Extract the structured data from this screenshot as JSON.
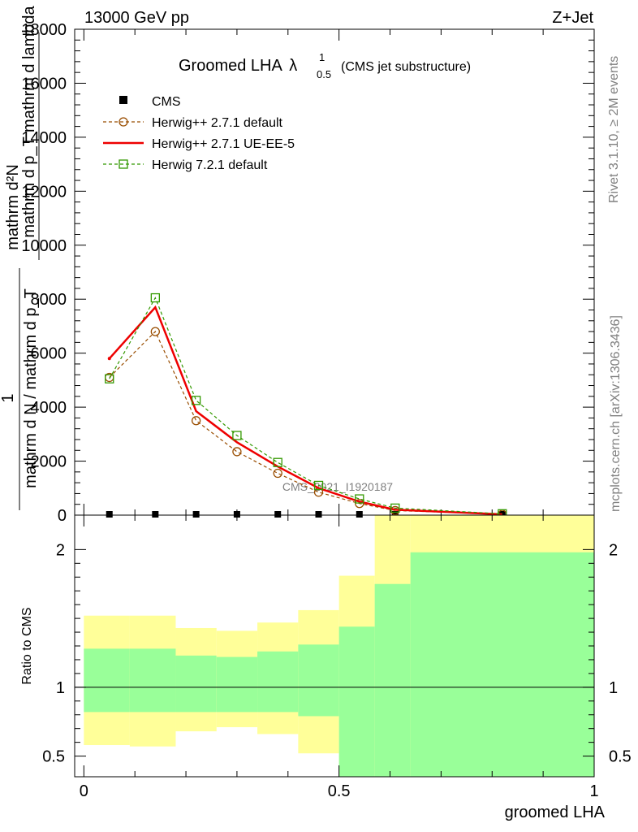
{
  "header": {
    "left": "13000 GeV pp",
    "right": "Z+Jet"
  },
  "side_labels": {
    "rivet": "Rivet 3.1.10, ≥ 2M events",
    "mcplots": "mcplots.cern.ch [arXiv:1306.3436]"
  },
  "chart_data": [
    {
      "type": "line",
      "title": "Groomed LHA",
      "title_symbol": "λ",
      "title_sup": "1",
      "title_sub": "0.5",
      "title_note": "(CMS jet substructure)",
      "watermark": "CMS_2021_I1920187",
      "ylabel_numerator_a": "mathrm d²N",
      "ylabel_numerator_b": "mathrm d p_T mathrm d lambda",
      "ylabel_one": "1",
      "ylabel_denominator": "mathrm d N / mathrm d p_T",
      "xlim": [
        0,
        1
      ],
      "ylim": [
        0,
        18000
      ],
      "yticks": [
        0,
        2000,
        4000,
        6000,
        8000,
        10000,
        12000,
        14000,
        16000,
        18000
      ],
      "ytick_labels": [
        "0",
        "2000",
        "4000",
        "6000",
        "8000",
        "10000",
        "12000",
        "14000",
        "16000",
        "18000"
      ],
      "legend_position": "top-left",
      "series": [
        {
          "name": "CMS",
          "color": "#000000",
          "style": "marker-square-filled",
          "x": [
            0.05,
            0.14,
            0.22,
            0.3,
            0.38,
            0.46,
            0.54,
            0.61,
            0.82
          ],
          "y": [
            0,
            0,
            0,
            0,
            0,
            0,
            0,
            0,
            0
          ]
        },
        {
          "name": "Herwig++ 2.7.1 default",
          "color": "#994d00",
          "style": "dashed-open-circle",
          "x": [
            0.05,
            0.14,
            0.22,
            0.3,
            0.38,
            0.46,
            0.54,
            0.61,
            0.82
          ],
          "y": [
            5100,
            6800,
            3500,
            2350,
            1550,
            850,
            430,
            170,
            30
          ]
        },
        {
          "name": "Herwig++ 2.7.1 UE-EE-5",
          "color": "#ee0000",
          "style": "solid",
          "x": [
            0.05,
            0.14,
            0.22,
            0.3,
            0.38,
            0.46,
            0.54,
            0.61,
            0.82
          ],
          "y": [
            5800,
            7700,
            3850,
            2700,
            1800,
            1000,
            500,
            200,
            30
          ]
        },
        {
          "name": "Herwig 7.2.1 default",
          "color": "#339900",
          "style": "dashed-open-square",
          "x": [
            0.05,
            0.14,
            0.22,
            0.3,
            0.38,
            0.46,
            0.54,
            0.61,
            0.82
          ],
          "y": [
            5050,
            8050,
            4250,
            2950,
            1950,
            1100,
            600,
            260,
            50
          ]
        }
      ]
    },
    {
      "type": "area",
      "ylabel": "Ratio to CMS",
      "xlabel": "groomed LHA",
      "xlim": [
        0,
        1
      ],
      "ylim": [
        0.35,
        2.25
      ],
      "xticks": [
        0,
        0.5,
        1
      ],
      "xtick_labels": [
        "0",
        "0.5",
        "1"
      ],
      "yticks": [
        0.5,
        1,
        2
      ],
      "ytick_labels": [
        "0.5",
        "1",
        "2"
      ],
      "reference_line": 1,
      "bins": [
        {
          "x0": 0.0,
          "x1": 0.09,
          "inner_low": 0.82,
          "inner_high": 1.28,
          "outer_low": 0.58,
          "outer_high": 1.52
        },
        {
          "x0": 0.09,
          "x1": 0.18,
          "inner_low": 0.82,
          "inner_high": 1.28,
          "outer_low": 0.57,
          "outer_high": 1.52
        },
        {
          "x0": 0.18,
          "x1": 0.26,
          "inner_low": 0.82,
          "inner_high": 1.23,
          "outer_low": 0.68,
          "outer_high": 1.43
        },
        {
          "x0": 0.26,
          "x1": 0.34,
          "inner_low": 0.82,
          "inner_high": 1.22,
          "outer_low": 0.71,
          "outer_high": 1.41
        },
        {
          "x0": 0.34,
          "x1": 0.42,
          "inner_low": 0.82,
          "inner_high": 1.26,
          "outer_low": 0.66,
          "outer_high": 1.47
        },
        {
          "x0": 0.42,
          "x1": 0.5,
          "inner_low": 0.79,
          "inner_high": 1.31,
          "outer_low": 0.52,
          "outer_high": 1.56
        },
        {
          "x0": 0.5,
          "x1": 0.57,
          "inner_low": 0.35,
          "inner_high": 1.44,
          "outer_low": 0.35,
          "outer_high": 1.81
        },
        {
          "x0": 0.57,
          "x1": 0.64,
          "inner_low": 0.35,
          "inner_high": 1.75,
          "outer_low": 0.35,
          "outer_high": 2.25
        },
        {
          "x0": 0.64,
          "x1": 1.0,
          "inner_low": 0.35,
          "inner_high": 1.98,
          "outer_low": 0.35,
          "outer_high": 2.25
        }
      ],
      "inner_color": "#99ff99",
      "outer_color": "#ffff99"
    }
  ]
}
